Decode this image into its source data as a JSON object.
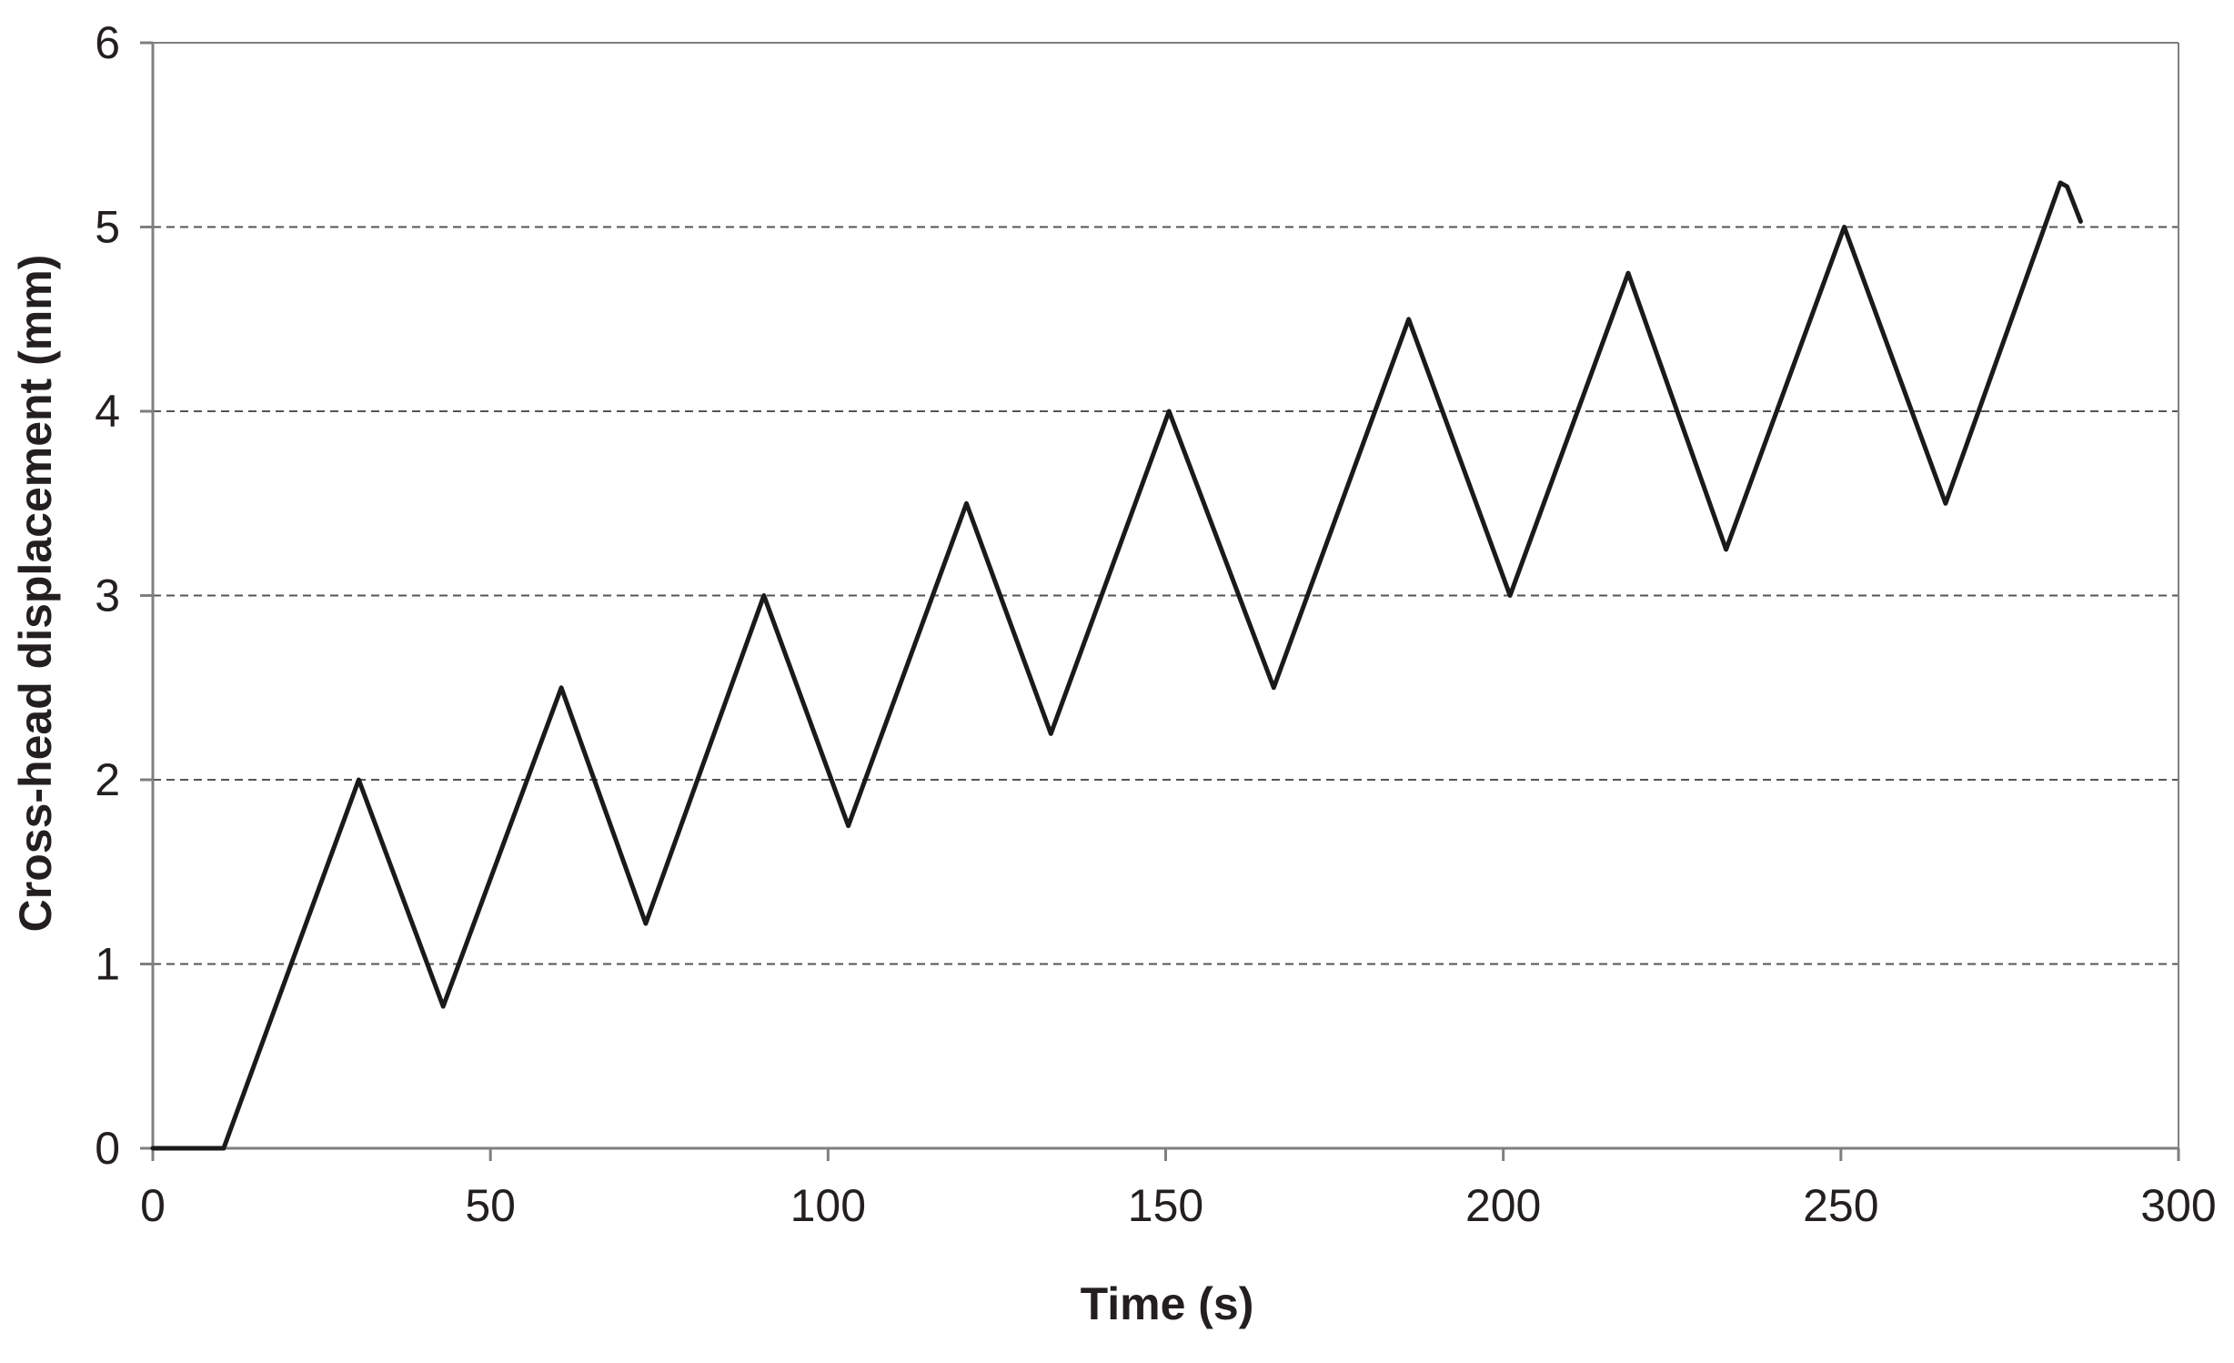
{
  "chart_data": {
    "type": "line",
    "title": "",
    "xlabel": "Time (s)",
    "ylabel": "Cross-head displacement (mm)",
    "xlim": [
      0,
      300
    ],
    "ylim": [
      0,
      6
    ],
    "x_ticks": [
      0,
      50,
      100,
      150,
      200,
      250,
      300
    ],
    "y_ticks": [
      0,
      1,
      2,
      3,
      4,
      5,
      6
    ],
    "x_tick_labels": [
      "0",
      "50",
      "100",
      "150",
      "200",
      "250",
      "300"
    ],
    "y_tick_labels": [
      "0",
      "1",
      "2",
      "3",
      "4",
      "5",
      "6"
    ],
    "grid": {
      "horizontal": true,
      "vertical": false,
      "style": "dashed"
    },
    "legend": "none",
    "line_color": "#1a1a1a",
    "series": [
      {
        "x": [
          0,
          10.5,
          30.5,
          43,
          60.5,
          73,
          90.5,
          103,
          120.5,
          133,
          150.5,
          166,
          186,
          201,
          218.5,
          233,
          250.5,
          265.5,
          282.5,
          283.5,
          285.5
        ],
        "y": [
          0,
          0,
          2.0,
          0.77,
          2.5,
          1.22,
          3.0,
          1.75,
          3.5,
          2.25,
          4.0,
          2.5,
          4.5,
          3.0,
          4.75,
          3.25,
          5.0,
          3.5,
          5.24,
          5.22,
          5.03
        ]
      }
    ]
  }
}
